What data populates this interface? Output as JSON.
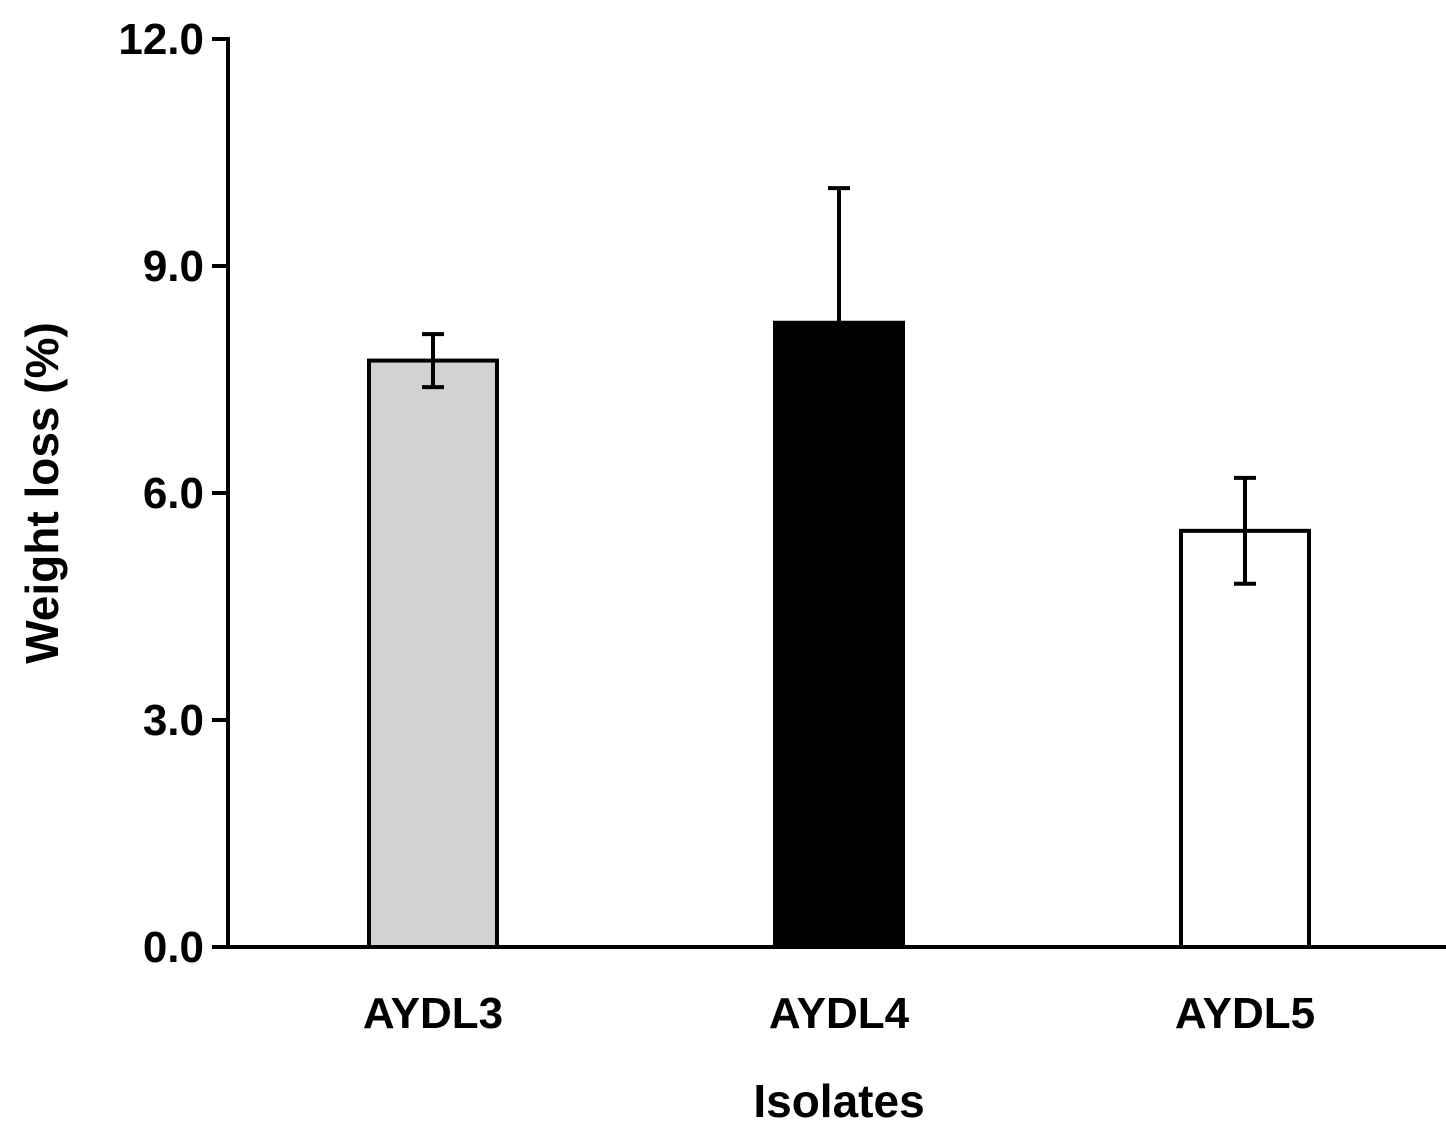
{
  "chart_data": {
    "type": "bar",
    "title": "",
    "xlabel": "Isolates",
    "ylabel": "Weight loss (%)",
    "ylim": [
      0,
      12
    ],
    "yticks": [
      0,
      3,
      6,
      9,
      12
    ],
    "ytick_labels": [
      "0.0",
      "3.0",
      "6.0",
      "9.0",
      "12.0"
    ],
    "categories": [
      "AYDL3",
      "AYDL4",
      "AYDL5"
    ],
    "values": [
      7.75,
      8.25,
      5.5
    ],
    "errors": [
      0.35,
      1.78,
      0.7
    ],
    "bar_colors": [
      "#d3d1d2",
      "#000000",
      "#ffffff"
    ],
    "bar_edge_color": "#000000",
    "error_bars": "upper-and-lower",
    "grid": false,
    "legend": "none"
  }
}
